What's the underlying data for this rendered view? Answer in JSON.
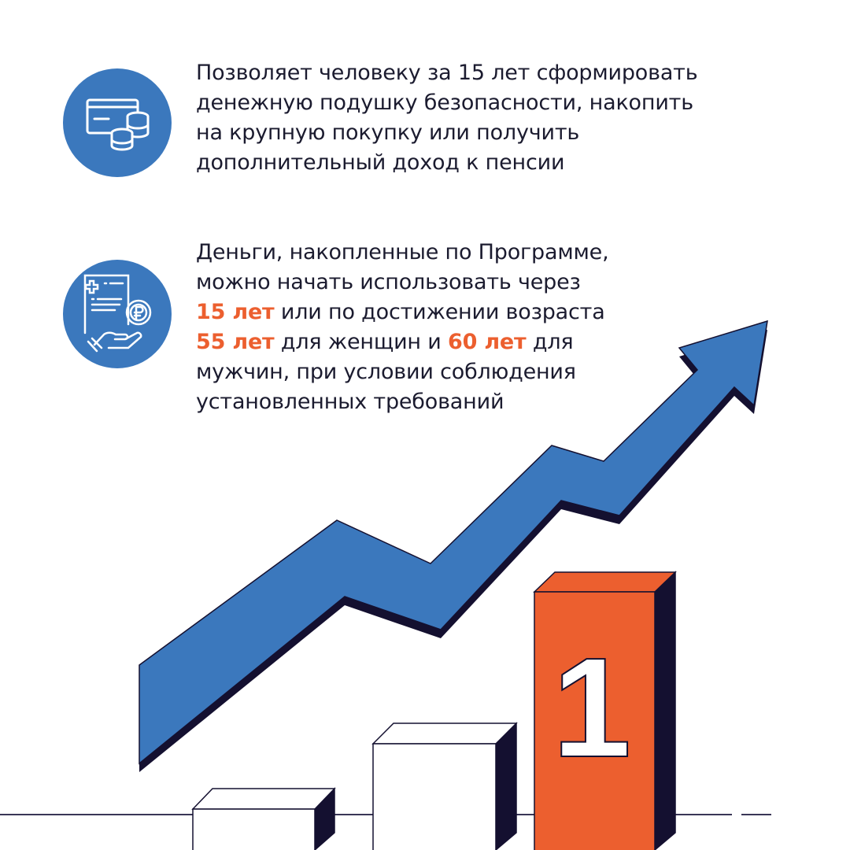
{
  "colors": {
    "accent_blue": "#3b78bd",
    "accent_orange": "#ec5f2f",
    "dark": "#141030",
    "text": "#1b1b2f"
  },
  "items": [
    {
      "icon": "card-and-coins-icon",
      "lines": [
        "Позволяет человеку за 15 лет сформировать",
        "денежную подушку безопасности, накопить",
        "на крупную покупку или получить",
        "дополнительный доход к пенсии"
      ]
    },
    {
      "icon": "document-hand-ruble-coin-icon",
      "line1": "Деньги, накопленные по Программе,",
      "line2": "можно начать использовать через",
      "line3_hl": "15 лет",
      "line3_rest": " или по достижении возраста",
      "line4_hl1": "55 лет",
      "line4_mid": " для женщин и ",
      "line4_hl2": "60 лет",
      "line4_rest": " для",
      "line5": "мужчин, при условии соблюдения",
      "line6": "установленных требований"
    }
  ],
  "illustration": {
    "arrow": "growth-arrow",
    "podium_number": "1"
  }
}
